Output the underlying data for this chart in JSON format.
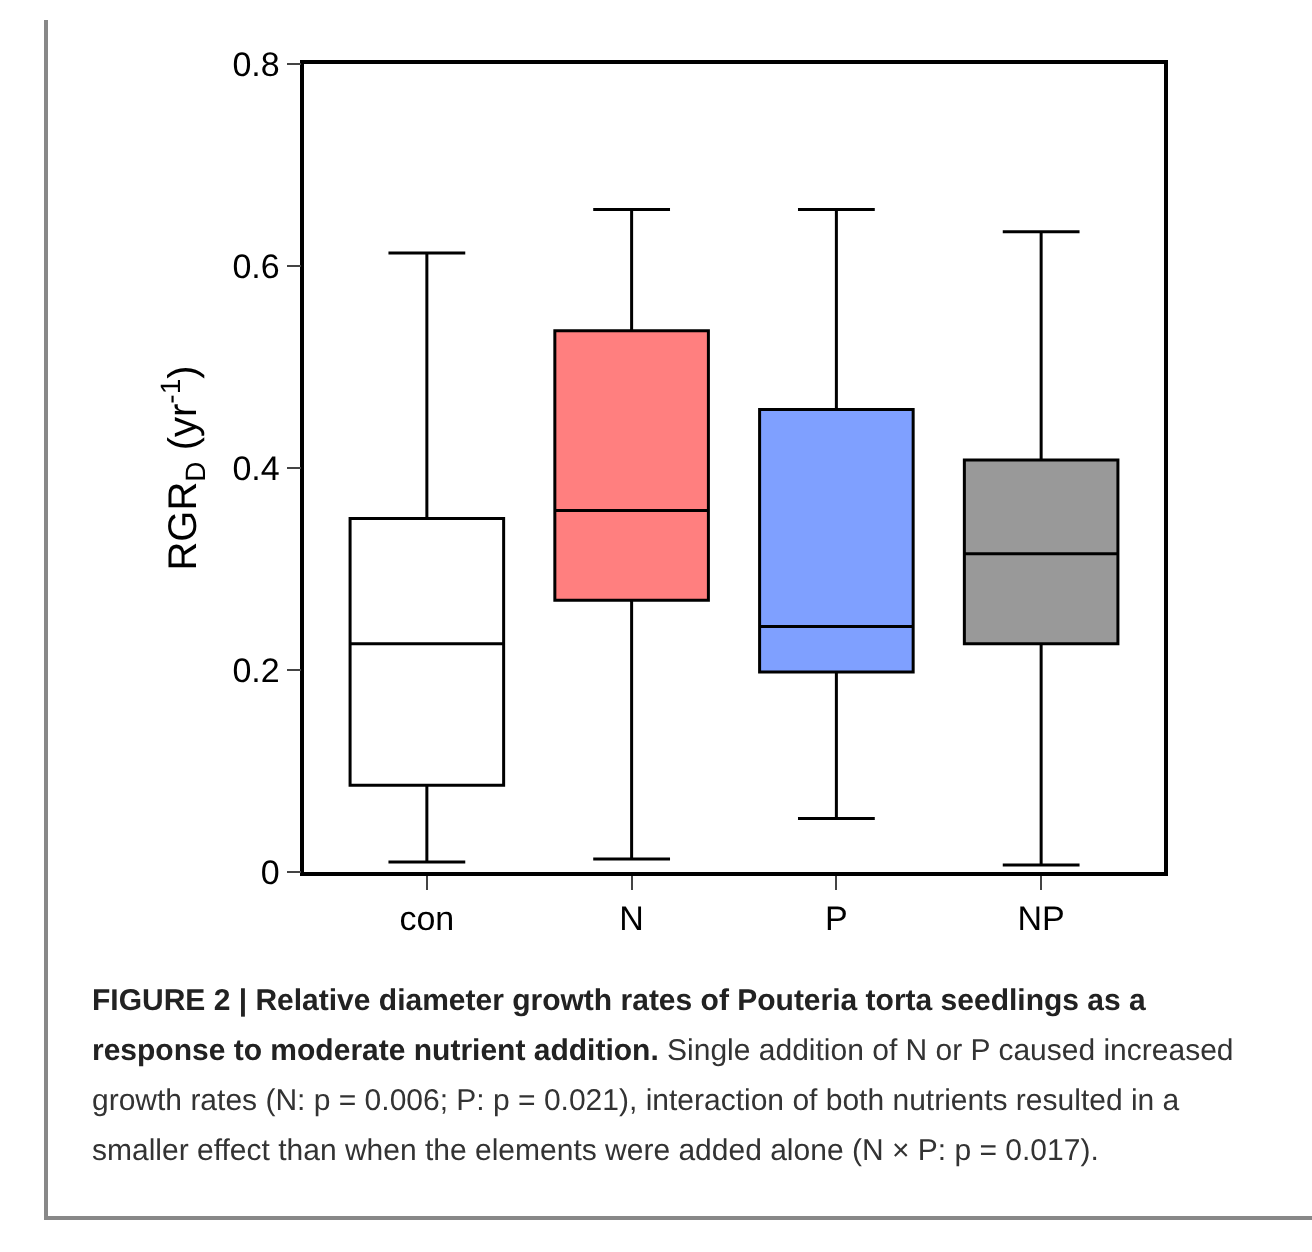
{
  "chart_data": {
    "type": "box",
    "title": "FIGURE 2 | Relative diameter growth rates of Pouteria torta seedlings as a response to moderate nutrient addition.",
    "annotations": [
      "Single addition of N or P caused increased growth rates (N: p = 0.006; P: p = 0.021), interaction of both nutrients resulted in a smaller effect than when the elements were added alone (N × P: p = 0.017)."
    ],
    "ylabel": "RGR$_{D}$ (yr$^{-1}$)",
    "categories": [
      "con",
      "N",
      "P",
      "NP"
    ],
    "colors": [
      "#ffffff",
      "#ff7f7f",
      "#7fa0ff",
      "#999999"
    ],
    "boxes": [
      {
        "low": 0.01,
        "q1": 0.086,
        "median": 0.226,
        "q3": 0.35,
        "high": 0.613
      },
      {
        "low": 0.013,
        "q1": 0.269,
        "median": 0.358,
        "q3": 0.536,
        "high": 0.656
      },
      {
        "low": 0.053,
        "q1": 0.198,
        "median": 0.243,
        "q3": 0.458,
        "high": 0.656
      },
      {
        "low": 0.007,
        "q1": 0.226,
        "median": 0.315,
        "q3": 0.408,
        "high": 0.634
      }
    ],
    "ylim": [
      0,
      0.8
    ],
    "yticks": [
      0,
      0.2,
      0.4,
      0.6,
      0.8
    ],
    "grid": false
  }
}
